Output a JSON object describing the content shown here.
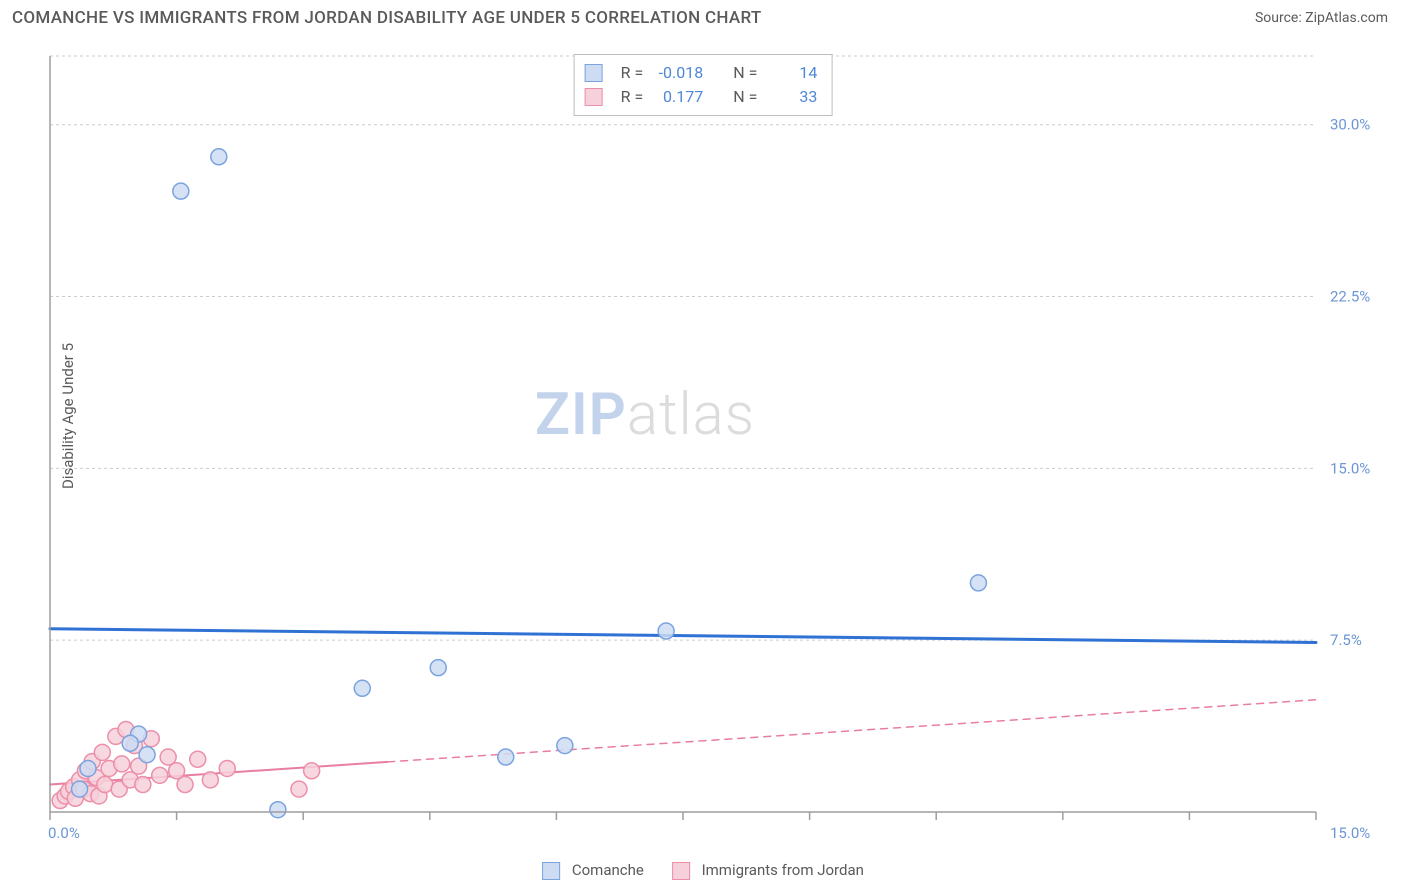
{
  "header": {
    "title": "COMANCHE VS IMMIGRANTS FROM JORDAN DISABILITY AGE UNDER 5 CORRELATION CHART",
    "source": "Source: ZipAtlas.com"
  },
  "chart": {
    "type": "scatter",
    "background_color": "#ffffff",
    "grid_color": "#cccccc",
    "axis_color": "#9d9d9d",
    "ylabel": "Disability Age Under 5",
    "watermark": {
      "zip": "ZIP",
      "atlas": "atlas"
    },
    "xlim": [
      0,
      15
    ],
    "ylim": [
      0,
      33
    ],
    "x_origin_label": "0.0%",
    "x_max_label": "15.0%",
    "y_ticks": [
      {
        "v": 7.5,
        "label": "7.5%"
      },
      {
        "v": 15.0,
        "label": "15.0%"
      },
      {
        "v": 22.5,
        "label": "22.5%"
      },
      {
        "v": 30.0,
        "label": "30.0%"
      }
    ],
    "x_tick_positions": [
      0,
      1.5,
      3.0,
      4.5,
      6.0,
      7.5,
      9.0,
      10.5,
      12.0,
      13.5,
      15.0
    ],
    "series": [
      {
        "name": "Comanche",
        "color_fill": "#cedcf3",
        "color_stroke": "#7ba3df",
        "marker_radius": 8,
        "trend": {
          "y1": 8.0,
          "y2": 7.4,
          "color": "#2f72d4",
          "width": 3,
          "dash_after_x": 15
        },
        "points": [
          [
            2.0,
            28.6
          ],
          [
            1.55,
            27.1
          ],
          [
            11.0,
            10.0
          ],
          [
            7.3,
            7.9
          ],
          [
            4.6,
            6.3
          ],
          [
            3.7,
            5.4
          ],
          [
            6.1,
            2.9
          ],
          [
            5.4,
            2.4
          ],
          [
            1.05,
            3.4
          ],
          [
            0.95,
            3.0
          ],
          [
            1.15,
            2.5
          ],
          [
            0.45,
            1.9
          ],
          [
            0.35,
            1.0
          ],
          [
            2.7,
            0.1
          ]
        ]
      },
      {
        "name": "Immigrants from Jordan",
        "color_fill": "#f6d0da",
        "color_stroke": "#ec8fa8",
        "marker_radius": 8,
        "trend": {
          "y1": 1.2,
          "y2": 4.9,
          "color": "#e97da0",
          "width": 2,
          "dash_after_x": 4.0
        },
        "points": [
          [
            0.12,
            0.5
          ],
          [
            0.18,
            0.7
          ],
          [
            0.22,
            0.9
          ],
          [
            0.28,
            1.1
          ],
          [
            0.3,
            0.6
          ],
          [
            0.35,
            1.4
          ],
          [
            0.4,
            1.0
          ],
          [
            0.42,
            1.8
          ],
          [
            0.48,
            0.8
          ],
          [
            0.5,
            2.2
          ],
          [
            0.55,
            1.5
          ],
          [
            0.58,
            0.7
          ],
          [
            0.62,
            2.6
          ],
          [
            0.65,
            1.2
          ],
          [
            0.7,
            1.9
          ],
          [
            0.78,
            3.3
          ],
          [
            0.82,
            1.0
          ],
          [
            0.85,
            2.1
          ],
          [
            0.9,
            3.6
          ],
          [
            0.95,
            1.4
          ],
          [
            1.0,
            2.9
          ],
          [
            1.05,
            2.0
          ],
          [
            1.1,
            1.2
          ],
          [
            1.2,
            3.2
          ],
          [
            1.3,
            1.6
          ],
          [
            1.4,
            2.4
          ],
          [
            1.5,
            1.8
          ],
          [
            1.6,
            1.2
          ],
          [
            1.75,
            2.3
          ],
          [
            1.9,
            1.4
          ],
          [
            2.1,
            1.9
          ],
          [
            2.95,
            1.0
          ],
          [
            3.1,
            1.8
          ]
        ]
      }
    ],
    "correlation_legend": [
      {
        "swatch_fill": "#cedcf3",
        "swatch_stroke": "#7ba3df",
        "r_label": "R =",
        "r": "-0.018",
        "n_label": "N =",
        "n": "14"
      },
      {
        "swatch_fill": "#f6d0da",
        "swatch_stroke": "#ec8fa8",
        "r_label": "R =",
        "r": "0.177",
        "n_label": "N =",
        "n": "33"
      }
    ]
  }
}
